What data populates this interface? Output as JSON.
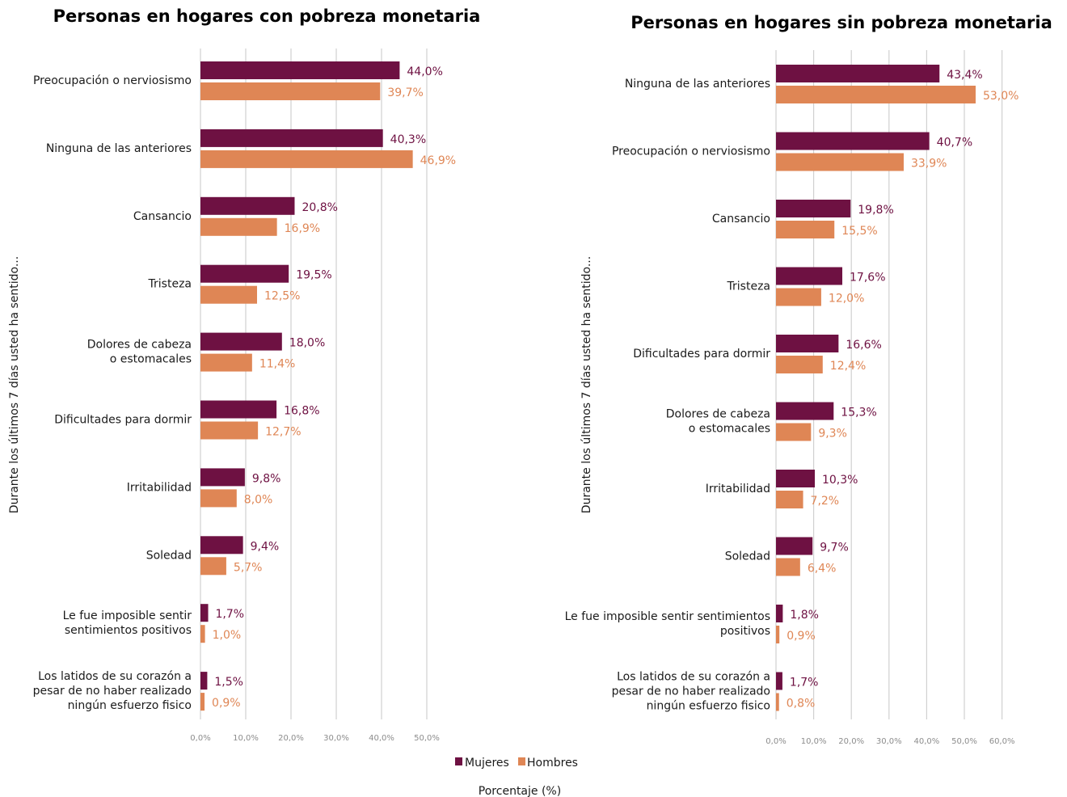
{
  "legend": {
    "mujeres": "Mujeres",
    "hombres": "Hombres"
  },
  "x_axis_label": "Porcentaje (%)",
  "colors": {
    "mujeres": "#6e1142",
    "hombres": "#df8655",
    "grid": "#d0d0d0"
  },
  "chart_data": [
    {
      "type": "bar",
      "orientation": "horizontal",
      "title": "Personas en hogares con pobreza monetaria",
      "ylabel": "Durante los últimos 7 días usted ha sentido...",
      "xlabel": "Porcentaje (%)",
      "xlim": [
        0,
        50
      ],
      "xticks": [
        "0,0%",
        "10,0%",
        "20,0%",
        "30,0%",
        "40,0%",
        "50,0%"
      ],
      "categories": [
        [
          "Preocupación o nerviosismo"
        ],
        [
          "Ninguna de las anteriores"
        ],
        [
          "Cansancio"
        ],
        [
          "Tristeza"
        ],
        [
          "Dolores de cabeza",
          "o estomacales"
        ],
        [
          "Dificultades para dormir"
        ],
        [
          "Irritabilidad"
        ],
        [
          "Soledad"
        ],
        [
          "Le fue imposible sentir",
          "sentimientos positivos"
        ],
        [
          "Los latidos de su corazón a",
          "pesar de no haber realizado",
          "ningún esfuerzo fisico"
        ]
      ],
      "series": [
        {
          "name": "Mujeres",
          "values": [
            44.0,
            40.3,
            20.8,
            19.5,
            18.0,
            16.8,
            9.8,
            9.4,
            1.7,
            1.5
          ],
          "labels": [
            "44,0%",
            "40,3%",
            "20,8%",
            "19,5%",
            "18,0%",
            "16,8%",
            "9,8%",
            "9,4%",
            "1,7%",
            "1,5%"
          ]
        },
        {
          "name": "Hombres",
          "values": [
            39.7,
            46.9,
            16.9,
            12.5,
            11.4,
            12.7,
            8.0,
            5.7,
            1.0,
            0.9
          ],
          "labels": [
            "39,7%",
            "46,9%",
            "16,9%",
            "12,5%",
            "11,4%",
            "12,7%",
            "8,0%",
            "5,7%",
            "1,0%",
            "0,9%"
          ]
        }
      ],
      "grid": true
    },
    {
      "type": "bar",
      "orientation": "horizontal",
      "title": "Personas en hogares sin pobreza monetaria",
      "ylabel": "Durante los últimos 7 días usted ha sentido...",
      "xlabel": "Porcentaje (%)",
      "xlim": [
        0,
        60
      ],
      "xticks": [
        "0,0%",
        "10,0%",
        "20,0%",
        "30,0%",
        "40,0%",
        "50,0%",
        "60,0%"
      ],
      "categories": [
        [
          "Ninguna de las anteriores"
        ],
        [
          "Preocupación o nerviosismo"
        ],
        [
          "Cansancio"
        ],
        [
          "Tristeza"
        ],
        [
          "Dificultades para dormir"
        ],
        [
          "Dolores de cabeza",
          "o estomacales"
        ],
        [
          "Irritabilidad"
        ],
        [
          "Soledad"
        ],
        [
          "Le fue imposible sentir sentimientos",
          "positivos"
        ],
        [
          "Los latidos de su corazón a",
          "pesar de no haber realizado",
          "ningún esfuerzo fisico"
        ]
      ],
      "series": [
        {
          "name": "Mujeres",
          "values": [
            43.4,
            40.7,
            19.8,
            17.6,
            16.6,
            15.3,
            10.3,
            9.7,
            1.8,
            1.7
          ],
          "labels": [
            "43,4%",
            "40,7%",
            "19,8%",
            "17,6%",
            "16,6%",
            "15,3%",
            "10,3%",
            "9,7%",
            "1,8%",
            "1,7%"
          ]
        },
        {
          "name": "Hombres",
          "values": [
            53.0,
            33.9,
            15.5,
            12.0,
            12.4,
            9.3,
            7.2,
            6.4,
            0.9,
            0.8
          ],
          "labels": [
            "53,0%",
            "33,9%",
            "15,5%",
            "12,0%",
            "12,4%",
            "9,3%",
            "7,2%",
            "6,4%",
            "0,9%",
            "0,8%"
          ]
        }
      ],
      "grid": true
    }
  ]
}
